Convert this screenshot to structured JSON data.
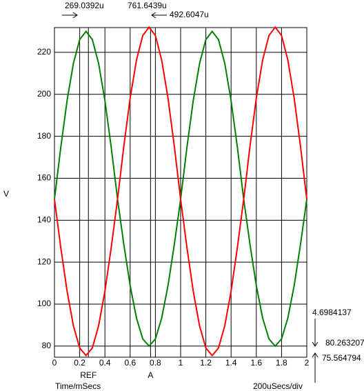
{
  "chart_data": {
    "type": "line",
    "x_label": "Time/mSecs",
    "y_label": "V",
    "scale_label": "200uSecs/div",
    "x": [
      0,
      0.05,
      0.1,
      0.15,
      0.2,
      0.25,
      0.3,
      0.35,
      0.4,
      0.45,
      0.5,
      0.55,
      0.6,
      0.65,
      0.7,
      0.75,
      0.8,
      0.85,
      0.9,
      0.95,
      1,
      1.05,
      1.1,
      1.15,
      1.2,
      1.25,
      1.3,
      1.35,
      1.4,
      1.45,
      1.5,
      1.55,
      1.6,
      1.65,
      1.7,
      1.75,
      1.8,
      1.85,
      1.9,
      1.95,
      2
    ],
    "series": [
      {
        "color": "#008000",
        "values": [
          150,
          174.7,
          197,
          214.7,
          226.1,
          230,
          226.1,
          214.7,
          197,
          174.7,
          150,
          128.4,
          108.8,
          93.4,
          83.4,
          80,
          83.4,
          93.4,
          108.8,
          128.4,
          150,
          174.7,
          197,
          214.7,
          226.1,
          230,
          226.1,
          214.7,
          197,
          174.7,
          150,
          128.4,
          108.8,
          93.4,
          83.4,
          80,
          83.4,
          93.4,
          108.8,
          128.4,
          150
        ]
      },
      {
        "color": "#ff0000",
        "values": [
          150,
          127,
          106.2,
          89.7,
          79.1,
          75.5,
          79.1,
          89.7,
          106.2,
          127,
          150,
          175.3,
          198.2,
          216.3,
          228,
          232,
          228,
          216.3,
          198.2,
          175.3,
          150,
          127,
          106.2,
          89.7,
          79.1,
          75.5,
          79.1,
          89.7,
          106.2,
          127,
          150,
          175.3,
          198.2,
          216.3,
          228,
          232,
          228,
          216.3,
          198.2,
          175.3,
          150
        ]
      }
    ],
    "xlim": [
      0,
      2
    ],
    "ylim": [
      74.7,
      231.8
    ],
    "xticks": [
      0,
      0.2,
      0.4,
      0.6,
      0.8,
      1,
      1.2,
      1.4,
      1.6,
      1.8,
      2
    ],
    "yticks": [
      80,
      100,
      120,
      140,
      160,
      180,
      200,
      220
    ],
    "grid": true,
    "cursors": [
      {
        "label": "REF",
        "x": 0.2690392
      },
      {
        "label": "A",
        "x": 0.7616439
      }
    ],
    "annotations": {
      "ref_time": "269.0392u",
      "a_time": "761.6439u",
      "delta_time": "492.6047u",
      "delta_value": "4.6984137",
      "a_value": "80.263207",
      "ref_value": "75.564794"
    }
  }
}
